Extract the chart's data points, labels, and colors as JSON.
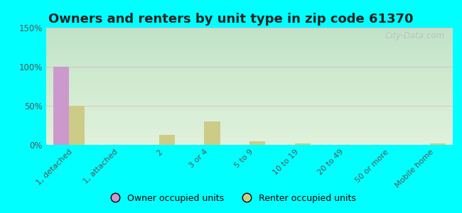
{
  "title": "Owners and renters by unit type in zip code 61370",
  "categories": [
    "1, detached",
    "1, attached",
    "2",
    "3 or 4",
    "5 to 9",
    "10 to 19",
    "20 to 49",
    "50 or more",
    "Mobile home"
  ],
  "owner_values": [
    100,
    0,
    0,
    0,
    0,
    0,
    0,
    0,
    0
  ],
  "renter_values": [
    50,
    0,
    13,
    30,
    5,
    2,
    0,
    0,
    2
  ],
  "owner_color": "#cc99cc",
  "renter_color": "#cccc88",
  "ylim": [
    0,
    150
  ],
  "yticks": [
    0,
    50,
    100,
    150
  ],
  "ytick_labels": [
    "0%",
    "50%",
    "100%",
    "150%"
  ],
  "background_color_fig": "#00ffff",
  "bar_width": 0.35,
  "title_fontsize": 13,
  "watermark": "City-Data.com",
  "gradient_top": "#f8fbf5",
  "gradient_bottom": "#d8ecc8"
}
